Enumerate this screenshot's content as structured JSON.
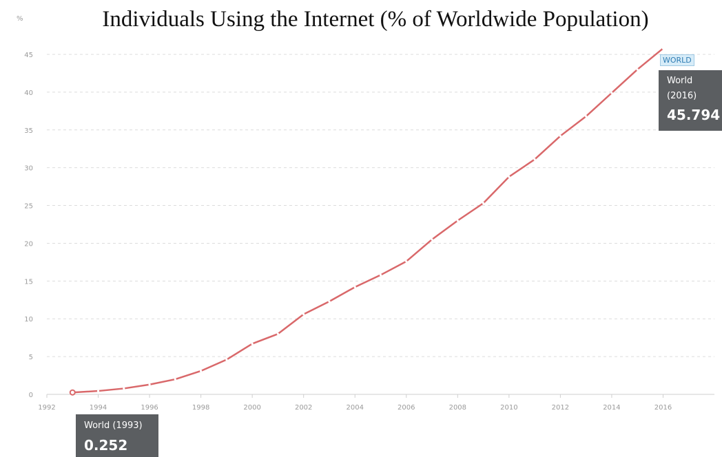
{
  "chart_data": {
    "type": "line",
    "title": "Individuals Using the Internet (% of Worldwide Population)",
    "ylabel": "%",
    "xlabel": "",
    "x": [
      1993,
      1994,
      1995,
      1996,
      1997,
      1998,
      1999,
      2000,
      2001,
      2002,
      2003,
      2004,
      2005,
      2006,
      2007,
      2008,
      2009,
      2010,
      2011,
      2012,
      2013,
      2014,
      2015,
      2016
    ],
    "series": [
      {
        "name": "World",
        "label": "WORLD",
        "color": "#d9686a",
        "values": [
          0.252,
          0.45,
          0.78,
          1.3,
          2.0,
          3.1,
          4.6,
          6.7,
          8.0,
          10.6,
          12.3,
          14.2,
          15.8,
          17.6,
          20.5,
          23.0,
          25.3,
          28.8,
          31.1,
          34.2,
          36.8,
          39.9,
          43.0,
          45.794
        ]
      }
    ],
    "xlim": [
      1992,
      2018
    ],
    "ylim": [
      0,
      45
    ],
    "x_ticks": [
      "1992",
      "1994",
      "1996",
      "1998",
      "2000",
      "2002",
      "2004",
      "2006",
      "2008",
      "2010",
      "2012",
      "2014",
      "2016"
    ],
    "y_ticks": [
      "0",
      "5",
      "10",
      "15",
      "20",
      "25",
      "30",
      "35",
      "40",
      "45"
    ],
    "grid": "horizontal dashed",
    "tooltips": [
      {
        "name": "World (1993)",
        "value": "0.252"
      },
      {
        "name": "World",
        "year": "(2016)",
        "value": "45.794"
      }
    ]
  }
}
